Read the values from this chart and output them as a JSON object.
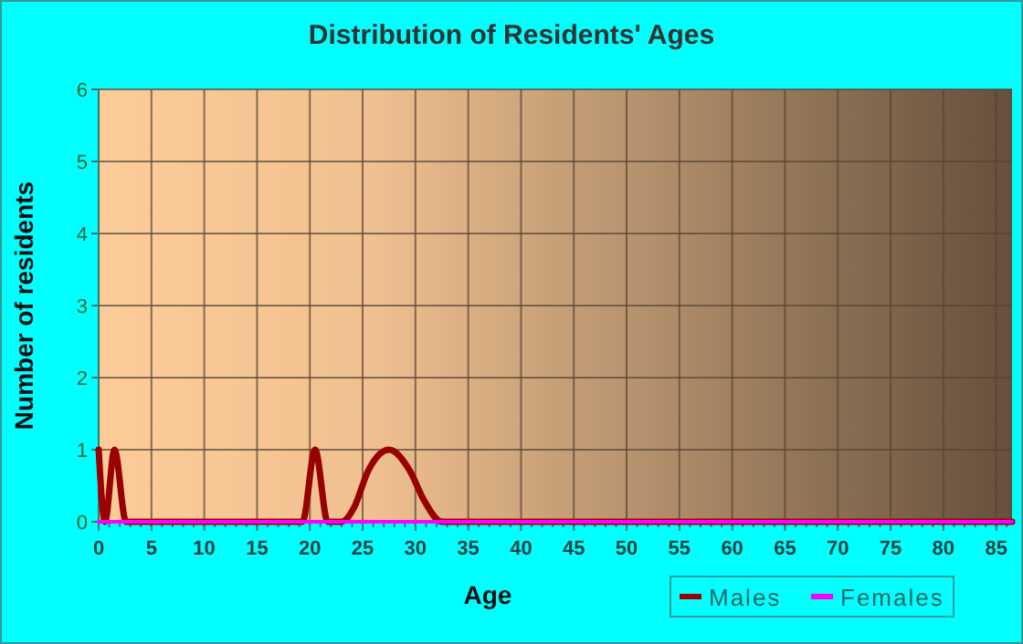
{
  "chart_data": {
    "type": "line",
    "title": "Distribution of Residents' Ages",
    "xlabel": "Age",
    "ylabel": "Number of residents",
    "xlim": [
      0,
      86.5
    ],
    "xticks": [
      0,
      5,
      10,
      15,
      20,
      25,
      30,
      35,
      40,
      45,
      50,
      55,
      60,
      65,
      70,
      75,
      80,
      85
    ],
    "ylim": [
      0,
      6
    ],
    "yticks": [
      0,
      1,
      2,
      3,
      4,
      5,
      6
    ],
    "grid": true,
    "legend": "bottom right",
    "line_style": "solid",
    "marker": "none",
    "series": [
      {
        "name": "Males",
        "color": "#990000",
        "x": [
          0,
          0.6,
          1.5,
          2.6,
          19.3,
          20.5,
          21.7,
          23,
          24.2,
          25.5,
          27.5,
          29.5,
          30.8,
          32.5,
          86.5
        ],
        "values": [
          1,
          0,
          1,
          0,
          0,
          1,
          0,
          0,
          0.2,
          0.7,
          1,
          0.7,
          0.3,
          0,
          0
        ]
      },
      {
        "name": "Females",
        "color": "#ff00ff",
        "x": [
          0,
          86.5
        ],
        "values": [
          0,
          0
        ]
      }
    ]
  }
}
